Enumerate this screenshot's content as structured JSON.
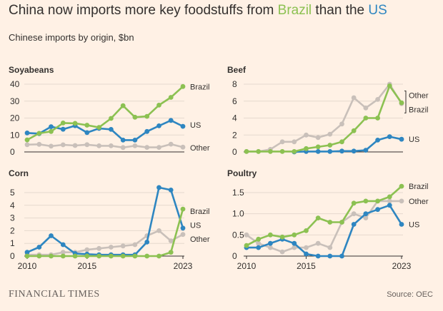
{
  "header": {
    "title_pre": "China now imports more key foodstuffs from ",
    "title_brazil": "Brazil",
    "title_mid": " than the ",
    "title_us": "US",
    "subtitle": "Chinese imports by origin, $bn"
  },
  "footer": {
    "logo": "FINANCIAL TIMES",
    "source": "Source: OEC"
  },
  "colors": {
    "brazil": "#8CC152",
    "us": "#2E86C1",
    "other": "#C9C0BA",
    "axis": "#33302E",
    "grid": "#E6D9CE",
    "background": "#FFF1E5"
  },
  "chart_data": [
    {
      "type": "line",
      "title": "Soyabeans",
      "x": [
        2010,
        2011,
        2012,
        2013,
        2014,
        2015,
        2016,
        2017,
        2018,
        2019,
        2020,
        2021,
        2022,
        2023
      ],
      "ylim": [
        0,
        40
      ],
      "yticks": [
        0,
        10,
        20,
        30,
        40
      ],
      "xticks": [],
      "series": [
        {
          "name": "Other",
          "key": "other",
          "values": [
            4.3,
            4.5,
            3.4,
            4.2,
            3.8,
            4.3,
            3.6,
            3.6,
            2.6,
            3.6,
            2.7,
            2.7,
            4.6,
            2.8
          ]
        },
        {
          "name": "US",
          "key": "us",
          "values": [
            11.2,
            10.8,
            14.9,
            13.4,
            15.5,
            11.4,
            13.9,
            13.3,
            7.0,
            7.0,
            12.1,
            15.4,
            18.6,
            15.1
          ]
        },
        {
          "name": "Brazil",
          "key": "brazil",
          "values": [
            7.1,
            11.0,
            12.1,
            17.1,
            16.9,
            15.8,
            14.5,
            19.8,
            27.3,
            20.5,
            21.0,
            27.6,
            32.2,
            38.6
          ]
        }
      ],
      "labels": [
        {
          "text": "Brazil",
          "key": "brazil",
          "y": 38.6
        },
        {
          "text": "US",
          "key": "us",
          "y": 16.0
        },
        {
          "text": "Other",
          "key": "other",
          "y": 2.5
        }
      ]
    },
    {
      "type": "line",
      "title": "Beef",
      "x": [
        2010,
        2011,
        2012,
        2013,
        2014,
        2015,
        2016,
        2017,
        2018,
        2019,
        2020,
        2021,
        2022,
        2023
      ],
      "ylim": [
        0,
        8
      ],
      "yticks": [
        0,
        2,
        4,
        6,
        8
      ],
      "xticks": [],
      "series": [
        {
          "name": "Other",
          "key": "other",
          "values": [
            0.05,
            0.05,
            0.3,
            1.2,
            1.2,
            2.0,
            1.7,
            2.1,
            3.3,
            6.4,
            5.2,
            6.2,
            8.0,
            5.7
          ]
        },
        {
          "name": "US",
          "key": "us",
          "values": [
            null,
            null,
            null,
            null,
            0.0,
            0.05,
            0.05,
            0.05,
            0.1,
            0.1,
            0.2,
            1.4,
            1.8,
            1.5
          ]
        },
        {
          "name": "Brazil",
          "key": "brazil",
          "values": [
            0.05,
            0.05,
            0.05,
            0.05,
            0.05,
            0.4,
            0.6,
            0.8,
            1.2,
            2.5,
            4.0,
            4.0,
            7.8,
            5.8
          ]
        }
      ],
      "labels": [
        {
          "text": "Other",
          "key": "other",
          "y": 6.7
        },
        {
          "text": "Brazil",
          "key": "brazil",
          "y": 5.0
        },
        {
          "text": "US",
          "key": "us",
          "y": 1.5
        }
      ]
    },
    {
      "type": "line",
      "title": "Corn",
      "x": [
        2010,
        2011,
        2012,
        2013,
        2014,
        2015,
        2016,
        2017,
        2018,
        2019,
        2020,
        2021,
        2022,
        2023
      ],
      "ylim": [
        0,
        5
      ],
      "yticks": [
        0,
        1,
        2,
        3,
        4,
        5
      ],
      "xticks": [
        2010,
        2015,
        2023
      ],
      "series": [
        {
          "name": "Other",
          "key": "other",
          "values": [
            0.1,
            0.1,
            0.1,
            0.3,
            0.3,
            0.5,
            0.6,
            0.7,
            0.8,
            0.9,
            1.6,
            2.0,
            1.2,
            1.7
          ]
        },
        {
          "name": "US",
          "key": "us",
          "values": [
            0.3,
            0.7,
            1.6,
            0.9,
            0.2,
            0.15,
            0.1,
            0.1,
            0.1,
            0.1,
            1.1,
            5.4,
            5.2,
            2.2
          ]
        },
        {
          "name": "Brazil",
          "key": "brazil",
          "values": [
            0.0,
            0.0,
            0.0,
            0.0,
            0.0,
            0.0,
            0.0,
            0.0,
            0.0,
            0.0,
            0.0,
            0.0,
            0.3,
            3.7
          ]
        }
      ],
      "labels": [
        {
          "text": "Brazil",
          "key": "brazil",
          "y": 3.55
        },
        {
          "text": "US",
          "key": "us",
          "y": 2.45
        },
        {
          "text": "Other",
          "key": "other",
          "y": 1.35
        }
      ]
    },
    {
      "type": "line",
      "title": "Poultry",
      "x": [
        2010,
        2011,
        2012,
        2013,
        2014,
        2015,
        2016,
        2017,
        2018,
        2019,
        2020,
        2021,
        2022,
        2023
      ],
      "ylim": [
        0,
        1.5
      ],
      "yticks": [
        0,
        0.5,
        1.0,
        1.5
      ],
      "ytick_labels": [
        "0",
        "0.5",
        "1.0",
        "1.5"
      ],
      "xticks": [
        2010,
        2015,
        2023
      ],
      "series": [
        {
          "name": "Other",
          "key": "other",
          "values": [
            0.5,
            0.3,
            0.2,
            0.1,
            0.2,
            0.2,
            0.3,
            0.2,
            0.8,
            1.0,
            0.9,
            1.3,
            1.3,
            1.3
          ]
        },
        {
          "name": "US",
          "key": "us",
          "values": [
            0.2,
            0.2,
            0.3,
            0.4,
            0.3,
            0.05,
            0.0,
            0.0,
            0.0,
            0.75,
            1.0,
            1.1,
            1.2,
            0.75
          ]
        },
        {
          "name": "Brazil",
          "key": "brazil",
          "values": [
            0.25,
            0.4,
            0.5,
            0.45,
            0.5,
            0.6,
            0.9,
            0.8,
            0.8,
            1.25,
            1.3,
            1.3,
            1.4,
            1.65
          ]
        }
      ],
      "labels": [
        {
          "text": "Brazil",
          "key": "brazil",
          "y": 1.65
        },
        {
          "text": "Other",
          "key": "other",
          "y": 1.3
        },
        {
          "text": "US",
          "key": "us",
          "y": 0.75
        }
      ]
    }
  ]
}
